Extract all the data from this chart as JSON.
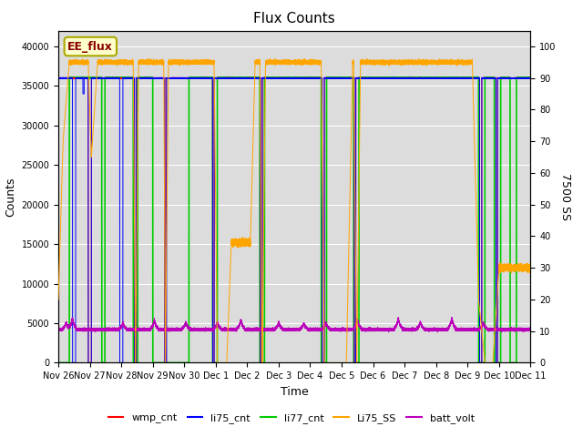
{
  "title": "Flux Counts",
  "xlabel": "Time",
  "ylabel_left": "Counts",
  "ylabel_right": "7500 SS",
  "ylim_left": [
    0,
    42000
  ],
  "ylim_right": [
    0,
    105
  ],
  "background_color": "#dcdcdc",
  "annotation_text": "EE_flux",
  "annotation_color": "#8b0000",
  "annotation_bg": "#ffffcc",
  "legend_entries": [
    "wmp_cnt",
    "li75_cnt",
    "li77_cnt",
    "Li75_SS",
    "batt_volt"
  ],
  "legend_colors": [
    "#ff0000",
    "#0000ff",
    "#00cc00",
    "#ffa500",
    "#bb00bb"
  ],
  "x_ticks_labels": [
    "Nov 26",
    "Nov 27",
    "Nov 28",
    "Nov 29",
    "Nov 30",
    "Dec 1",
    "Dec 2",
    "Dec 3",
    "Dec 4",
    "Dec 5",
    "Dec 6",
    "Dec 7",
    "Dec 8",
    "Dec 9",
    "Dec 10",
    "Dec 11"
  ],
  "x_ticks_values": [
    0,
    1,
    2,
    3,
    4,
    5,
    6,
    7,
    8,
    9,
    10,
    11,
    12,
    13,
    14,
    15
  ],
  "yticks_left": [
    0,
    5000,
    10000,
    15000,
    20000,
    25000,
    30000,
    35000,
    40000
  ],
  "yticks_right": [
    0,
    10,
    20,
    30,
    40,
    50,
    60,
    70,
    80,
    90,
    100
  ],
  "xlim": [
    0,
    15
  ]
}
